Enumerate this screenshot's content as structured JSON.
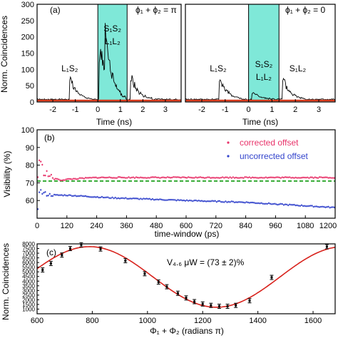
{
  "chart_data": [
    {
      "type": "line",
      "panel_label": "(a)",
      "ylabel": "Norm. Coincidences",
      "xlabel": "Time (ns)",
      "xlim": [
        -2.7,
        3.7
      ],
      "ylim": [
        0,
        300
      ],
      "yticks": [
        "0",
        "50",
        "100",
        "150",
        "200",
        "250",
        "300"
      ],
      "subplots": [
        {
          "phase_label": "ϕ₁ + ϕ₂ = π",
          "highlight_window_ns": [
            0,
            1.3
          ],
          "xticks": [
            "-2",
            "-1",
            "0",
            "1",
            "2",
            "3"
          ],
          "peak_labels": [
            "L₁S₂",
            "S₁S₂",
            "L₁L₂"
          ],
          "peaks": [
            {
              "center_ns": -1.2,
              "height": 70
            },
            {
              "center_ns": 0.1,
              "height": 205
            },
            {
              "center_ns": 0.35,
              "height": 150
            },
            {
              "center_ns": 1.5,
              "height": 85
            }
          ]
        },
        {
          "phase_label": "ϕ₁ + ϕ₂ = 0",
          "highlight_window_ns": [
            0,
            1.3
          ],
          "xticks": [
            "-2",
            "-1",
            "0",
            "1",
            "2",
            "3"
          ],
          "peak_labels": [
            "L₁S₂",
            "S₁S₂",
            "L₁L₂",
            "S₁L₂"
          ],
          "peaks": [
            {
              "center_ns": -1.2,
              "height": 75
            },
            {
              "center_ns": 0.2,
              "height": 25
            },
            {
              "center_ns": 1.5,
              "height": 70
            }
          ]
        }
      ]
    },
    {
      "type": "scatter",
      "panel_label": "(b)",
      "ylabel": "Visibility (%)",
      "xlabel": "time-window (ps)",
      "xlim": [
        0,
        1200
      ],
      "ylim": [
        50,
        100
      ],
      "xticks": [
        "0",
        "120",
        "240",
        "360",
        "480",
        "600",
        "720",
        "840",
        "960",
        "1080",
        "1200"
      ],
      "yticks": [
        "60",
        "70",
        "80",
        "90",
        "100"
      ],
      "reference_line": 71,
      "series": [
        {
          "name": "corrected offset",
          "color": "#e8336a",
          "x": [
            5,
            15,
            25,
            40,
            60,
            80,
            100,
            120,
            180,
            240,
            300,
            400,
            500,
            600,
            720,
            840,
            960,
            1080,
            1200
          ],
          "y": [
            87,
            80,
            77,
            75,
            73,
            72,
            71.5,
            72,
            72.5,
            73,
            73,
            73,
            73,
            73,
            73,
            73,
            73,
            73,
            73
          ]
        },
        {
          "name": "uncorrected offset",
          "color": "#3344cc",
          "x": [
            5,
            15,
            25,
            40,
            60,
            80,
            100,
            120,
            180,
            240,
            300,
            400,
            500,
            600,
            720,
            840,
            960,
            1080,
            1200
          ],
          "y": [
            67,
            65,
            64,
            63.5,
            63,
            63,
            63,
            63,
            62.5,
            62,
            61.5,
            61,
            60.5,
            60,
            59.5,
            59,
            58,
            57,
            56
          ]
        }
      ]
    },
    {
      "type": "scatter",
      "panel_label": "(c)",
      "ylabel": "Norm. Coincidences",
      "xlabel": "Φ₁ + Φ₂ (radians π)",
      "annotation": "V₄.₆ μW = (73 ± 2)%",
      "xlim": [
        600,
        1680
      ],
      "ylim": [
        500,
        8000
      ],
      "xticks": [
        "600",
        "800",
        "1000",
        "1200",
        "1400",
        "1600"
      ],
      "yticks": [
        "1000",
        "1500",
        "2000",
        "2500",
        "3000",
        "3500",
        "4000",
        "4500",
        "5000",
        "5500",
        "6000",
        "6500",
        "7000",
        "7500",
        "8000"
      ],
      "fit": {
        "period": 920,
        "phase_max": 790,
        "max": 7700,
        "min": 1200
      },
      "points": {
        "x": [
          620,
          650,
          690,
          720,
          760,
          830,
          920,
          990,
          1040,
          1070,
          1110,
          1140,
          1170,
          1200,
          1230,
          1260,
          1290,
          1320,
          1370,
          1450,
          1650
        ],
        "y": [
          5200,
          5900,
          6800,
          7500,
          7900,
          7450,
          6200,
          4800,
          3900,
          3400,
          2700,
          2200,
          1800,
          1550,
          1400,
          1300,
          1300,
          1400,
          1900,
          4400,
          7700
        ]
      }
    }
  ],
  "legend": {
    "corrected": "corrected offset",
    "uncorrected": "uncorrected offset"
  },
  "colors": {
    "highlight": "#7fe8d8",
    "trace": "#000000",
    "baseline": "#d83a1c",
    "fit": "#d8221c"
  }
}
